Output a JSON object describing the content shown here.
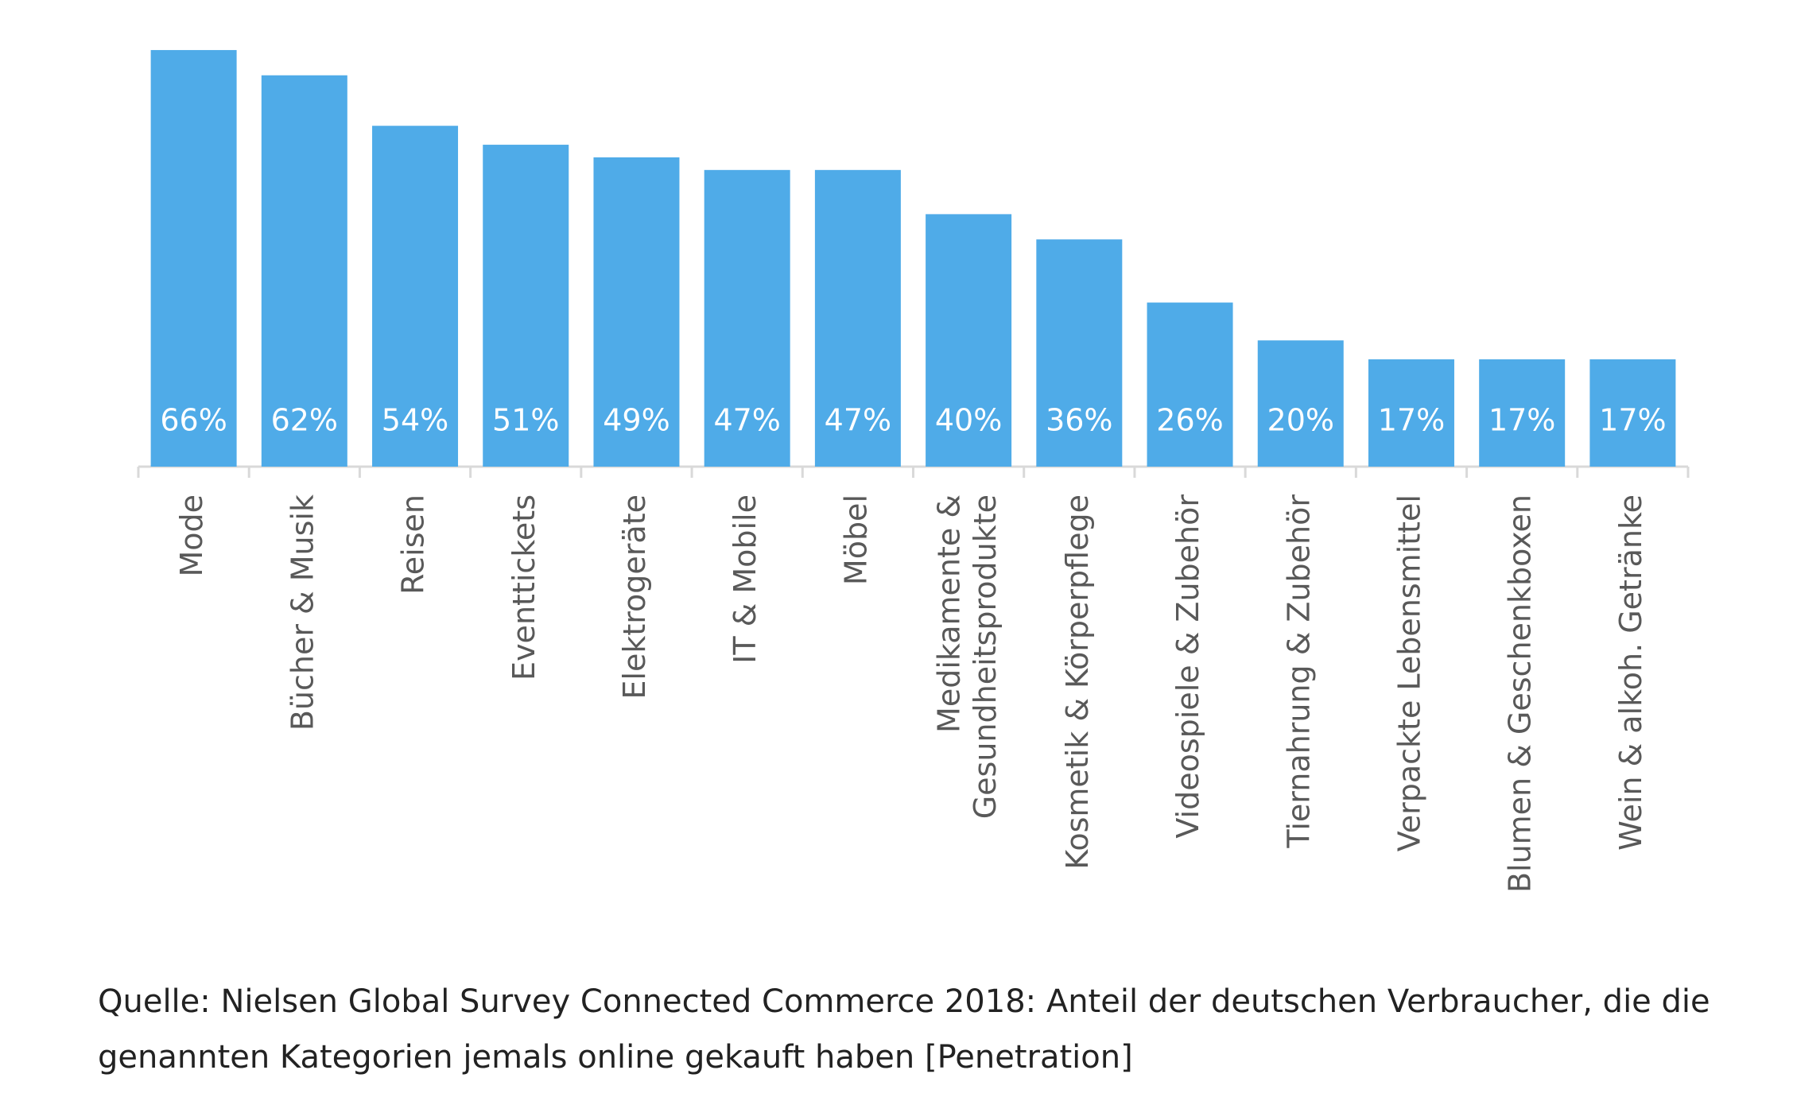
{
  "chart_data": {
    "type": "bar",
    "categories": [
      "Mode",
      "Bücher & Musik",
      "Reisen",
      "Eventtickets",
      "Elektrogeräte",
      "IT & Mobile",
      "Möbel",
      "Medikamente &\nGesundheitsprodukte",
      "Kosmetik & Körperpflege",
      "Videospiele & Zubehör",
      "Tiernahrung & Zubehör",
      "Verpackte Lebensmittel",
      "Blumen & Geschenkboxen",
      "Wein & alkoh. Getränke"
    ],
    "values": [
      66,
      62,
      54,
      51,
      49,
      47,
      47,
      40,
      36,
      26,
      20,
      17,
      17,
      17
    ],
    "value_labels": [
      "66%",
      "62%",
      "54%",
      "51%",
      "49%",
      "47%",
      "47%",
      "40%",
      "36%",
      "26%",
      "20%",
      "17%",
      "17%",
      "17%"
    ],
    "color": "#4fabe8",
    "caption": "Quelle: Nielsen Global Survey Connected Commerce 2018: Anteil der deutschen Verbraucher, die die genannten Kategorien jemals online gekauft haben [Penetration]"
  }
}
